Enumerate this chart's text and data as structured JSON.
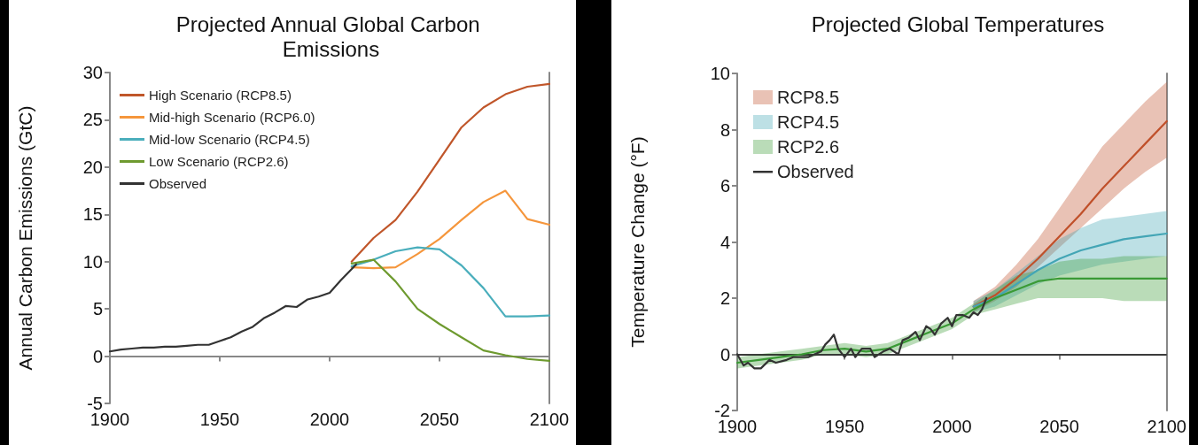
{
  "chart_data": [
    {
      "type": "line",
      "title": "Projected Annual Global Carbon Emissions",
      "ylabel": "Annual Carbon Emissions (GtC)",
      "xlim": [
        1900,
        2100
      ],
      "xticks": [
        1900,
        1950,
        2000,
        2050,
        2100
      ],
      "ylim": [
        -5,
        30
      ],
      "yticks": [
        -5,
        0,
        5,
        10,
        15,
        20,
        25,
        30
      ],
      "legend": "top left",
      "series": [
        {
          "name": "High Scenario (RCP8.5)",
          "color": "#c0562a",
          "x": [
            2010,
            2020,
            2030,
            2040,
            2050,
            2060,
            2070,
            2080,
            2090,
            2100
          ],
          "values": [
            10,
            12.5,
            14.4,
            17.4,
            20.8,
            24.2,
            26.3,
            27.7,
            28.5,
            28.8
          ]
        },
        {
          "name": "Mid-high Scenario (RCP6.0)",
          "color": "#f5963c",
          "x": [
            2010,
            2020,
            2030,
            2040,
            2050,
            2060,
            2070,
            2080,
            2090,
            2100
          ],
          "values": [
            9.4,
            9.3,
            9.4,
            10.8,
            12.4,
            14.4,
            16.3,
            17.5,
            14.5,
            13.9
          ]
        },
        {
          "name": "Mid-low Scenario (RCP4.5)",
          "color": "#4aaebc",
          "x": [
            2010,
            2020,
            2030,
            2040,
            2050,
            2060,
            2070,
            2080,
            2090,
            2100
          ],
          "values": [
            9.5,
            10.2,
            11.1,
            11.5,
            11.3,
            9.6,
            7.2,
            4.2,
            4.2,
            4.3
          ]
        },
        {
          "name": "Low Scenario (RCP2.6)",
          "color": "#6e9a2f",
          "x": [
            2010,
            2020,
            2030,
            2040,
            2050,
            2060,
            2070,
            2080,
            2090,
            2100
          ],
          "values": [
            9.8,
            10.2,
            7.9,
            5.0,
            3.4,
            2.0,
            0.6,
            0.1,
            -0.3,
            -0.5
          ]
        },
        {
          "name": "Observed",
          "color": "#333333",
          "x": [
            1900,
            1905,
            1910,
            1915,
            1920,
            1925,
            1930,
            1935,
            1940,
            1945,
            1950,
            1955,
            1960,
            1965,
            1970,
            1975,
            1980,
            1985,
            1990,
            1995,
            2000,
            2005,
            2010,
            2012
          ],
          "values": [
            0.5,
            0.7,
            0.8,
            0.9,
            0.9,
            1.0,
            1.0,
            1.1,
            1.2,
            1.2,
            1.6,
            2.0,
            2.6,
            3.1,
            4.0,
            4.6,
            5.3,
            5.2,
            6.0,
            6.3,
            6.7,
            8.0,
            9.2,
            9.7
          ]
        }
      ]
    },
    {
      "type": "line",
      "title": "Projected Global Temperatures",
      "ylabel": "Temperature Change (°F)",
      "xlim": [
        1900,
        2100
      ],
      "xticks": [
        1900,
        1950,
        2000,
        2050,
        2100
      ],
      "ylim": [
        -2,
        10
      ],
      "yticks": [
        -2,
        0,
        2,
        4,
        6,
        8,
        10
      ],
      "legend": "top left",
      "ref_lines": [
        {
          "axis": "y",
          "value": 0,
          "label": null,
          "color": "#222222"
        }
      ],
      "series": [
        {
          "name": "RCP8.5",
          "color": "#c0502a",
          "x": [
            2010,
            2020,
            2030,
            2040,
            2050,
            2060,
            2070,
            2080,
            2090,
            2100
          ],
          "values": [
            1.7,
            2.1,
            2.7,
            3.4,
            4.2,
            5.0,
            5.9,
            6.7,
            7.5,
            8.3
          ],
          "lower": [
            1.5,
            1.9,
            2.4,
            3.1,
            3.8,
            4.5,
            5.2,
            5.9,
            6.5,
            7.0
          ],
          "upper": [
            1.9,
            2.4,
            3.2,
            4.1,
            5.2,
            6.3,
            7.4,
            8.2,
            9.0,
            9.7
          ]
        },
        {
          "name": "RCP4.5",
          "color": "#43a5b5",
          "x": [
            2010,
            2020,
            2030,
            2040,
            2050,
            2060,
            2070,
            2080,
            2090,
            2100
          ],
          "values": [
            1.7,
            2.0,
            2.5,
            3.0,
            3.4,
            3.7,
            3.9,
            4.1,
            4.2,
            4.3
          ],
          "lower": [
            1.5,
            1.7,
            2.1,
            2.5,
            2.8,
            3.0,
            3.2,
            3.3,
            3.4,
            3.5
          ],
          "upper": [
            1.9,
            2.3,
            2.9,
            3.5,
            4.1,
            4.5,
            4.8,
            4.9,
            5.0,
            5.1
          ]
        },
        {
          "name": "RCP2.6",
          "color": "#3a9a35",
          "x": [
            1900,
            1910,
            1920,
            1930,
            1940,
            1950,
            1960,
            1970,
            1980,
            1990,
            2000,
            2010,
            2020,
            2030,
            2040,
            2050,
            2060,
            2070,
            2080,
            2090,
            2100
          ],
          "values": [
            -0.3,
            -0.2,
            -0.1,
            0.0,
            0.15,
            0.2,
            0.1,
            0.2,
            0.5,
            0.8,
            1.1,
            1.6,
            2.0,
            2.3,
            2.6,
            2.7,
            2.7,
            2.7,
            2.7,
            2.7,
            2.7
          ],
          "lower": [
            -0.5,
            -0.4,
            -0.3,
            -0.2,
            0.0,
            0.0,
            -0.1,
            0.0,
            0.3,
            0.6,
            0.9,
            1.4,
            1.6,
            1.8,
            2.0,
            2.0,
            2.0,
            2.0,
            1.9,
            1.9,
            1.9
          ],
          "upper": [
            -0.1,
            0.0,
            0.1,
            0.2,
            0.3,
            0.4,
            0.3,
            0.4,
            0.7,
            1.0,
            1.3,
            1.8,
            2.3,
            2.8,
            3.0,
            3.3,
            3.4,
            3.4,
            3.5,
            3.5,
            3.5
          ]
        },
        {
          "name": "Observed",
          "color": "#333333",
          "x": [
            1900,
            1903,
            1905,
            1908,
            1911,
            1915,
            1918,
            1923,
            1926,
            1930,
            1933,
            1936,
            1939,
            1941,
            1943,
            1945,
            1947,
            1950,
            1953,
            1955,
            1958,
            1962,
            1964,
            1968,
            1971,
            1975,
            1977,
            1980,
            1983,
            1985,
            1988,
            1990,
            1992,
            1995,
            1998,
            2000,
            2002,
            2005,
            2008,
            2010,
            2012,
            2014,
            2016
          ],
          "values": [
            0.0,
            -0.4,
            -0.3,
            -0.5,
            -0.5,
            -0.2,
            -0.3,
            -0.2,
            -0.1,
            -0.1,
            -0.1,
            0.0,
            0.1,
            0.35,
            0.5,
            0.7,
            0.2,
            -0.1,
            0.2,
            -0.1,
            0.2,
            0.2,
            -0.1,
            0.1,
            0.2,
            0.0,
            0.5,
            0.6,
            0.8,
            0.5,
            1.0,
            0.9,
            0.7,
            1.1,
            1.3,
            1.0,
            1.4,
            1.4,
            1.3,
            1.5,
            1.4,
            1.6,
            2.0
          ]
        }
      ]
    }
  ]
}
